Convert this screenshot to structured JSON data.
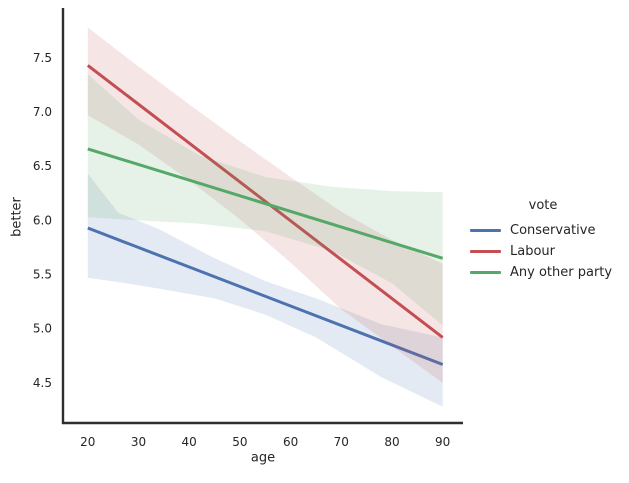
{
  "chart_data": {
    "type": "line",
    "title": "",
    "xlabel": "age",
    "ylabel": "better",
    "xlim": [
      15.1,
      94.0
    ],
    "ylim": [
      4.13,
      7.96
    ],
    "xticks": [
      20,
      30,
      40,
      50,
      60,
      70,
      80,
      90
    ],
    "yticks": [
      4.5,
      5.0,
      5.5,
      6.0,
      6.5,
      7.0,
      7.5
    ],
    "grid": false,
    "legend": {
      "title": "vote",
      "position": "center-right outside axes",
      "entries": [
        "Conservative",
        "Labour",
        "Any other party"
      ]
    },
    "style": {
      "background": "#ffffff",
      "spine_color": "#2e2e2e",
      "text_color": "#262626",
      "band_alpha": 0.15,
      "line_width": 3
    },
    "series": [
      {
        "name": "Conservative",
        "color": "#4C72B0",
        "x": [
          20,
          90
        ],
        "y": [
          5.93,
          4.67
        ],
        "ci_band": {
          "x": [
            20,
            26,
            34,
            45,
            55,
            65,
            78,
            90
          ],
          "upper": [
            6.43,
            6.07,
            5.92,
            5.65,
            5.44,
            5.28,
            5.04,
            4.92
          ],
          "lower": [
            5.47,
            5.43,
            5.37,
            5.28,
            5.13,
            4.92,
            4.55,
            4.28
          ]
        }
      },
      {
        "name": "Labour",
        "color": "#C44E52",
        "x": [
          20,
          90
        ],
        "y": [
          7.43,
          4.92
        ],
        "ci_band": {
          "x": [
            20,
            30,
            40,
            50,
            60,
            70,
            80,
            90
          ],
          "upper": [
            7.78,
            7.42,
            7.07,
            6.73,
            6.4,
            6.08,
            5.82,
            5.6
          ],
          "lower": [
            6.97,
            6.7,
            6.37,
            6.01,
            5.61,
            5.18,
            4.84,
            4.5
          ]
        }
      },
      {
        "name": "Any other party",
        "color": "#55A868",
        "x": [
          20,
          90
        ],
        "y": [
          6.66,
          5.65
        ],
        "ci_band": {
          "x": [
            20,
            30,
            42,
            55,
            68,
            80,
            90
          ],
          "upper": [
            7.35,
            6.93,
            6.6,
            6.4,
            6.31,
            6.27,
            6.26
          ],
          "lower": [
            6.03,
            6.0,
            5.97,
            5.9,
            5.72,
            5.42,
            5.03
          ]
        }
      }
    ]
  }
}
